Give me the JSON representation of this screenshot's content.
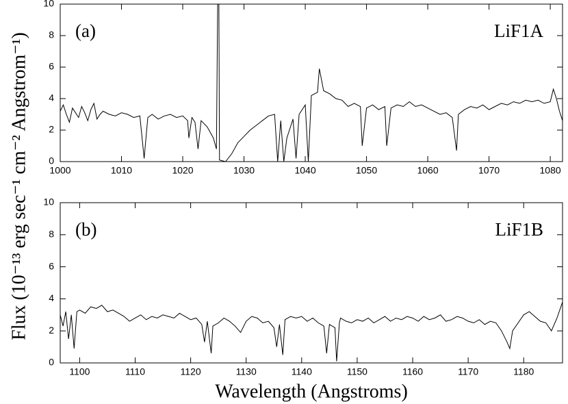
{
  "chart_data": [
    {
      "type": "line",
      "color": "#000000",
      "ylabel": "Flux (10⁻¹³ erg sec⁻¹ cm⁻² Angstrom⁻¹)",
      "annotations": [
        "(a)",
        "LiF1A"
      ],
      "xlim": [
        1000,
        1082
      ],
      "ylim": [
        0,
        10
      ],
      "xticks": [
        1000,
        1010,
        1020,
        1030,
        1040,
        1050,
        1060,
        1070,
        1080
      ],
      "yticks": [
        0,
        2,
        4,
        6,
        8,
        10
      ],
      "x": [
        1000,
        1000.5,
        1001,
        1001.5,
        1002,
        1002.5,
        1003,
        1003.5,
        1004,
        1004.5,
        1005,
        1005.5,
        1006,
        1006.5,
        1007,
        1008,
        1009,
        1010,
        1011,
        1012,
        1013,
        1013.7,
        1014.3,
        1015,
        1016,
        1017,
        1018,
        1019,
        1020,
        1020.8,
        1021,
        1021.5,
        1022,
        1022.5,
        1023,
        1024,
        1025,
        1025.5,
        1025.7,
        1025.9,
        1026,
        1027,
        1028,
        1029,
        1030,
        1031,
        1032,
        1033,
        1034,
        1035,
        1035.5,
        1036,
        1036.5,
        1037,
        1038,
        1038.5,
        1039,
        1040,
        1040.5,
        1041,
        1042,
        1042.3,
        1043,
        1044,
        1045,
        1046,
        1047,
        1048,
        1049,
        1049.3,
        1050,
        1051,
        1052,
        1053,
        1053.3,
        1054,
        1055,
        1056,
        1057,
        1058,
        1059,
        1060,
        1061,
        1062,
        1063,
        1064,
        1064.7,
        1065,
        1066,
        1067,
        1068,
        1069,
        1070,
        1071,
        1072,
        1073,
        1074,
        1075,
        1076,
        1077,
        1078,
        1079,
        1080,
        1080.5,
        1081,
        1081.5,
        1082
      ],
      "values": [
        3.2,
        3.6,
        3.0,
        2.5,
        3.4,
        3.1,
        2.8,
        3.5,
        3.1,
        2.6,
        3.3,
        3.7,
        2.7,
        3.0,
        3.2,
        3.0,
        2.9,
        3.1,
        3.0,
        2.8,
        2.9,
        0.2,
        2.8,
        3.0,
        2.7,
        2.9,
        3.0,
        2.8,
        2.9,
        2.6,
        1.5,
        2.8,
        2.5,
        0.8,
        2.6,
        2.2,
        1.5,
        0.8,
        10,
        10,
        0.1,
        0,
        0.5,
        1.2,
        1.6,
        2.0,
        2.3,
        2.6,
        2.9,
        3.0,
        0,
        2.6,
        0,
        1.5,
        2.7,
        0.2,
        3.0,
        3.6,
        0,
        4.2,
        4.4,
        5.9,
        4.5,
        4.3,
        4.0,
        3.9,
        3.5,
        3.7,
        3.5,
        1.0,
        3.4,
        3.6,
        3.3,
        3.5,
        1.0,
        3.4,
        3.6,
        3.5,
        3.8,
        3.5,
        3.6,
        3.4,
        3.2,
        3.0,
        3.1,
        2.8,
        0.7,
        3.0,
        3.3,
        3.5,
        3.4,
        3.6,
        3.3,
        3.5,
        3.7,
        3.6,
        3.8,
        3.7,
        3.9,
        3.8,
        3.9,
        3.7,
        3.8,
        4.6,
        4.0,
        3.2,
        2.6
      ]
    },
    {
      "type": "line",
      "color": "#000000",
      "xlabel": "Wavelength (Angstroms)",
      "annotations": [
        "(b)",
        "LiF1B"
      ],
      "xlim": [
        1096.5,
        1187
      ],
      "ylim": [
        0,
        10
      ],
      "xticks": [
        1100,
        1110,
        1120,
        1130,
        1140,
        1150,
        1160,
        1170,
        1180
      ],
      "yticks": [
        0,
        2,
        4,
        6,
        8,
        10
      ],
      "x": [
        1096.5,
        1097,
        1097.5,
        1098,
        1098.5,
        1099,
        1099.5,
        1100,
        1101,
        1102,
        1103,
        1104,
        1105,
        1106,
        1107,
        1108,
        1109,
        1110,
        1111,
        1112,
        1113,
        1114,
        1115,
        1116,
        1117,
        1118,
        1119,
        1120,
        1121,
        1122,
        1122.5,
        1123,
        1123.7,
        1124,
        1125,
        1126,
        1127,
        1128,
        1129,
        1130,
        1131,
        1132,
        1133,
        1134,
        1135,
        1135.5,
        1136,
        1136.6,
        1137,
        1138,
        1139,
        1140,
        1141,
        1142,
        1143,
        1144,
        1144.5,
        1145,
        1146,
        1146.3,
        1146.8,
        1147,
        1148,
        1149,
        1150,
        1151,
        1152,
        1153,
        1154,
        1155,
        1156,
        1157,
        1158,
        1159,
        1160,
        1161,
        1162,
        1163,
        1164,
        1165,
        1166,
        1167,
        1168,
        1169,
        1170,
        1171,
        1172,
        1173,
        1174,
        1175,
        1176,
        1177,
        1177.5,
        1178,
        1179,
        1180,
        1181,
        1182,
        1183,
        1184,
        1185,
        1186,
        1187
      ],
      "values": [
        3.0,
        2.3,
        3.2,
        1.5,
        3.0,
        0.9,
        3.2,
        3.3,
        3.1,
        3.5,
        3.4,
        3.6,
        3.2,
        3.3,
        3.1,
        2.9,
        2.6,
        2.8,
        3.0,
        2.7,
        2.9,
        2.8,
        3.0,
        2.9,
        2.8,
        3.1,
        2.9,
        2.7,
        2.8,
        2.4,
        1.3,
        2.6,
        0.6,
        2.3,
        2.5,
        2.8,
        2.6,
        2.3,
        1.9,
        2.6,
        2.9,
        2.8,
        2.5,
        2.6,
        2.2,
        1.0,
        2.4,
        0.5,
        2.7,
        2.9,
        2.8,
        2.9,
        2.6,
        2.8,
        2.5,
        2.3,
        0.6,
        2.4,
        2.2,
        0.1,
        2.5,
        2.8,
        2.6,
        2.5,
        2.7,
        2.6,
        2.8,
        2.5,
        2.7,
        2.9,
        2.6,
        2.8,
        2.7,
        2.9,
        2.8,
        2.6,
        2.9,
        2.7,
        2.8,
        3.0,
        2.6,
        2.7,
        2.9,
        2.8,
        2.6,
        2.5,
        2.7,
        2.4,
        2.6,
        2.5,
        2.0,
        1.3,
        0.9,
        2.0,
        2.5,
        3.0,
        3.2,
        2.9,
        2.6,
        2.5,
        2.0,
        2.8,
        3.8
      ]
    }
  ]
}
